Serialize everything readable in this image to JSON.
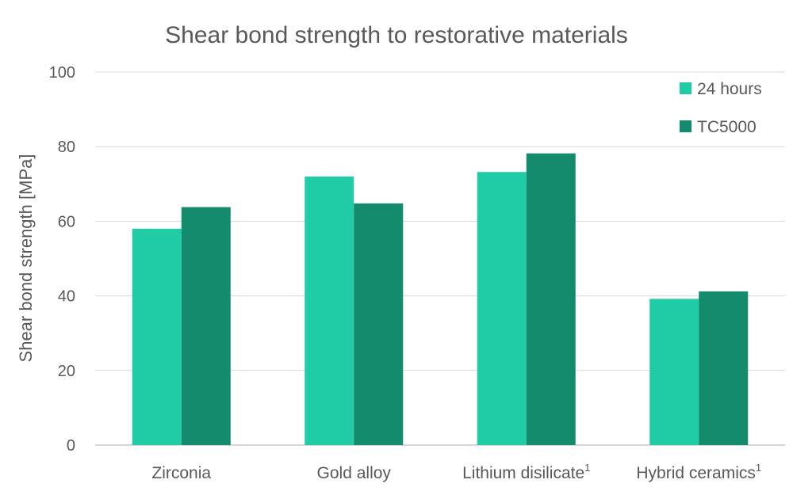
{
  "chart_data": {
    "type": "bar",
    "title": "Shear bond strength to restorative materials",
    "ylabel": "Shear bond strength [MPa]",
    "xlabel": "",
    "categories": [
      {
        "label": "Zirconia",
        "sup": ""
      },
      {
        "label": "Gold alloy",
        "sup": ""
      },
      {
        "label": "Lithium disilicate",
        "sup": "1"
      },
      {
        "label": "Hybrid ceramics",
        "sup": "1"
      }
    ],
    "series": [
      {
        "name": "24 hours",
        "color": "#20cca6",
        "values": [
          58,
          72,
          73.2,
          39.2
        ]
      },
      {
        "name": "TC5000",
        "color": "#148b6d",
        "values": [
          63.8,
          64.8,
          78.2,
          41.2
        ]
      }
    ],
    "ylim": [
      0,
      100
    ],
    "yticks": [
      0,
      20,
      40,
      60,
      80,
      100
    ],
    "grid": true,
    "legend_position": "top-right"
  }
}
